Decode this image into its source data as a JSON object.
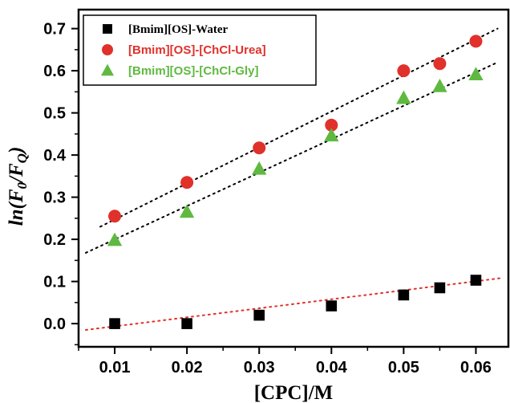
{
  "chart_data": {
    "type": "scatter",
    "xlabel": "[CPC]/M",
    "ylabel_parts": {
      "prefix": "ln(F",
      "sub0": "0",
      "mid": "/F",
      "subQ": "Q",
      "suffix": ")"
    },
    "xlim": [
      0.005,
      0.0645
    ],
    "ylim": [
      -0.055,
      0.745
    ],
    "xticks": [
      0.01,
      0.02,
      0.03,
      0.04,
      0.05,
      0.06
    ],
    "xtick_labels": [
      "0.01",
      "0.02",
      "0.03",
      "0.04",
      "0.05",
      "0.06"
    ],
    "yticks": [
      0.0,
      0.1,
      0.2,
      0.3,
      0.4,
      0.5,
      0.6,
      0.7
    ],
    "ytick_labels": [
      "0.0",
      "0.1",
      "0.2",
      "0.3",
      "0.4",
      "0.5",
      "0.6",
      "0.7"
    ],
    "legend_position": "top-left",
    "series": [
      {
        "name": "[Bmim][OS]-Water",
        "marker": "square",
        "color": "#000000",
        "legend_color": "#000000",
        "x": [
          0.01,
          0.02,
          0.03,
          0.04,
          0.05,
          0.055,
          0.06
        ],
        "y": [
          0.0,
          0.0,
          0.02,
          0.042,
          0.068,
          0.085,
          0.103
        ],
        "fit": {
          "x": [
            0.006,
            0.0635
          ],
          "y": [
            -0.015,
            0.108
          ],
          "color": "#e0312b"
        }
      },
      {
        "name": "[Bmim][OS]-[ChCl-Urea]",
        "marker": "circle",
        "color": "#e0312b",
        "legend_color": "#e0312b",
        "x": [
          0.01,
          0.02,
          0.03,
          0.04,
          0.05,
          0.055,
          0.06
        ],
        "y": [
          0.255,
          0.335,
          0.417,
          0.471,
          0.6,
          0.617,
          0.67
        ],
        "fit": {
          "x": [
            0.008,
            0.063
          ],
          "y": [
            0.23,
            0.7
          ],
          "color": "#000000"
        }
      },
      {
        "name": "[Bmim][OS]-[ChCl-Gly]",
        "marker": "triangle",
        "color": "#5fb941",
        "legend_color": "#5fb941",
        "x": [
          0.01,
          0.02,
          0.03,
          0.04,
          0.05,
          0.055,
          0.06
        ],
        "y": [
          0.198,
          0.265,
          0.367,
          0.446,
          0.535,
          0.563,
          0.591
        ],
        "fit": {
          "x": [
            0.006,
            0.063
          ],
          "y": [
            0.168,
            0.62
          ],
          "color": "#000000"
        }
      }
    ]
  }
}
